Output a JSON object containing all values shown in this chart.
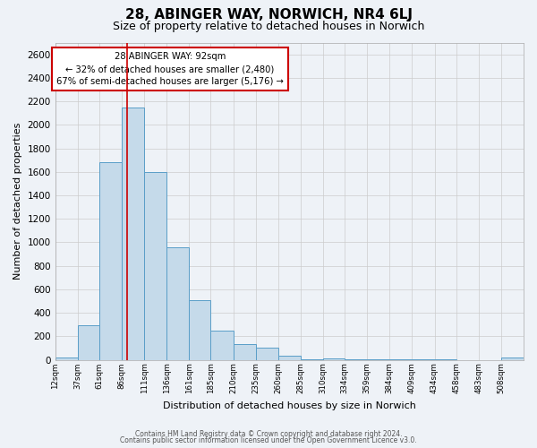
{
  "title": "28, ABINGER WAY, NORWICH, NR4 6LJ",
  "subtitle": "Size of property relative to detached houses in Norwich",
  "xlabel": "Distribution of detached houses by size in Norwich",
  "ylabel": "Number of detached properties",
  "bin_labels": [
    "12sqm",
    "37sqm",
    "61sqm",
    "86sqm",
    "111sqm",
    "136sqm",
    "161sqm",
    "185sqm",
    "210sqm",
    "235sqm",
    "260sqm",
    "285sqm",
    "310sqm",
    "334sqm",
    "359sqm",
    "384sqm",
    "409sqm",
    "434sqm",
    "458sqm",
    "483sqm",
    "508sqm"
  ],
  "bin_edges": [
    12,
    37,
    61,
    86,
    111,
    136,
    161,
    185,
    210,
    235,
    260,
    285,
    310,
    334,
    359,
    384,
    409,
    434,
    458,
    483,
    508,
    533
  ],
  "bar_values": [
    20,
    290,
    1680,
    2150,
    1600,
    960,
    505,
    245,
    130,
    100,
    35,
    5,
    10,
    5,
    5,
    2,
    2,
    2,
    0,
    0,
    20
  ],
  "bar_color": "#c5daea",
  "bar_edge_color": "#5a9ec8",
  "property_line_x": 92,
  "property_line_color": "#cc0000",
  "annotation_title": "28 ABINGER WAY: 92sqm",
  "annotation_line1": "← 32% of detached houses are smaller (2,480)",
  "annotation_line2": "67% of semi-detached houses are larger (5,176) →",
  "annotation_box_facecolor": "#ffffff",
  "annotation_box_edgecolor": "#cc0000",
  "ylim": [
    0,
    2700
  ],
  "yticks": [
    0,
    200,
    400,
    600,
    800,
    1000,
    1200,
    1400,
    1600,
    1800,
    2000,
    2200,
    2400,
    2600
  ],
  "footer1": "Contains HM Land Registry data © Crown copyright and database right 2024.",
  "footer2": "Contains public sector information licensed under the Open Government Licence v3.0.",
  "title_fontsize": 11,
  "subtitle_fontsize": 9,
  "background_color": "#eef2f7"
}
